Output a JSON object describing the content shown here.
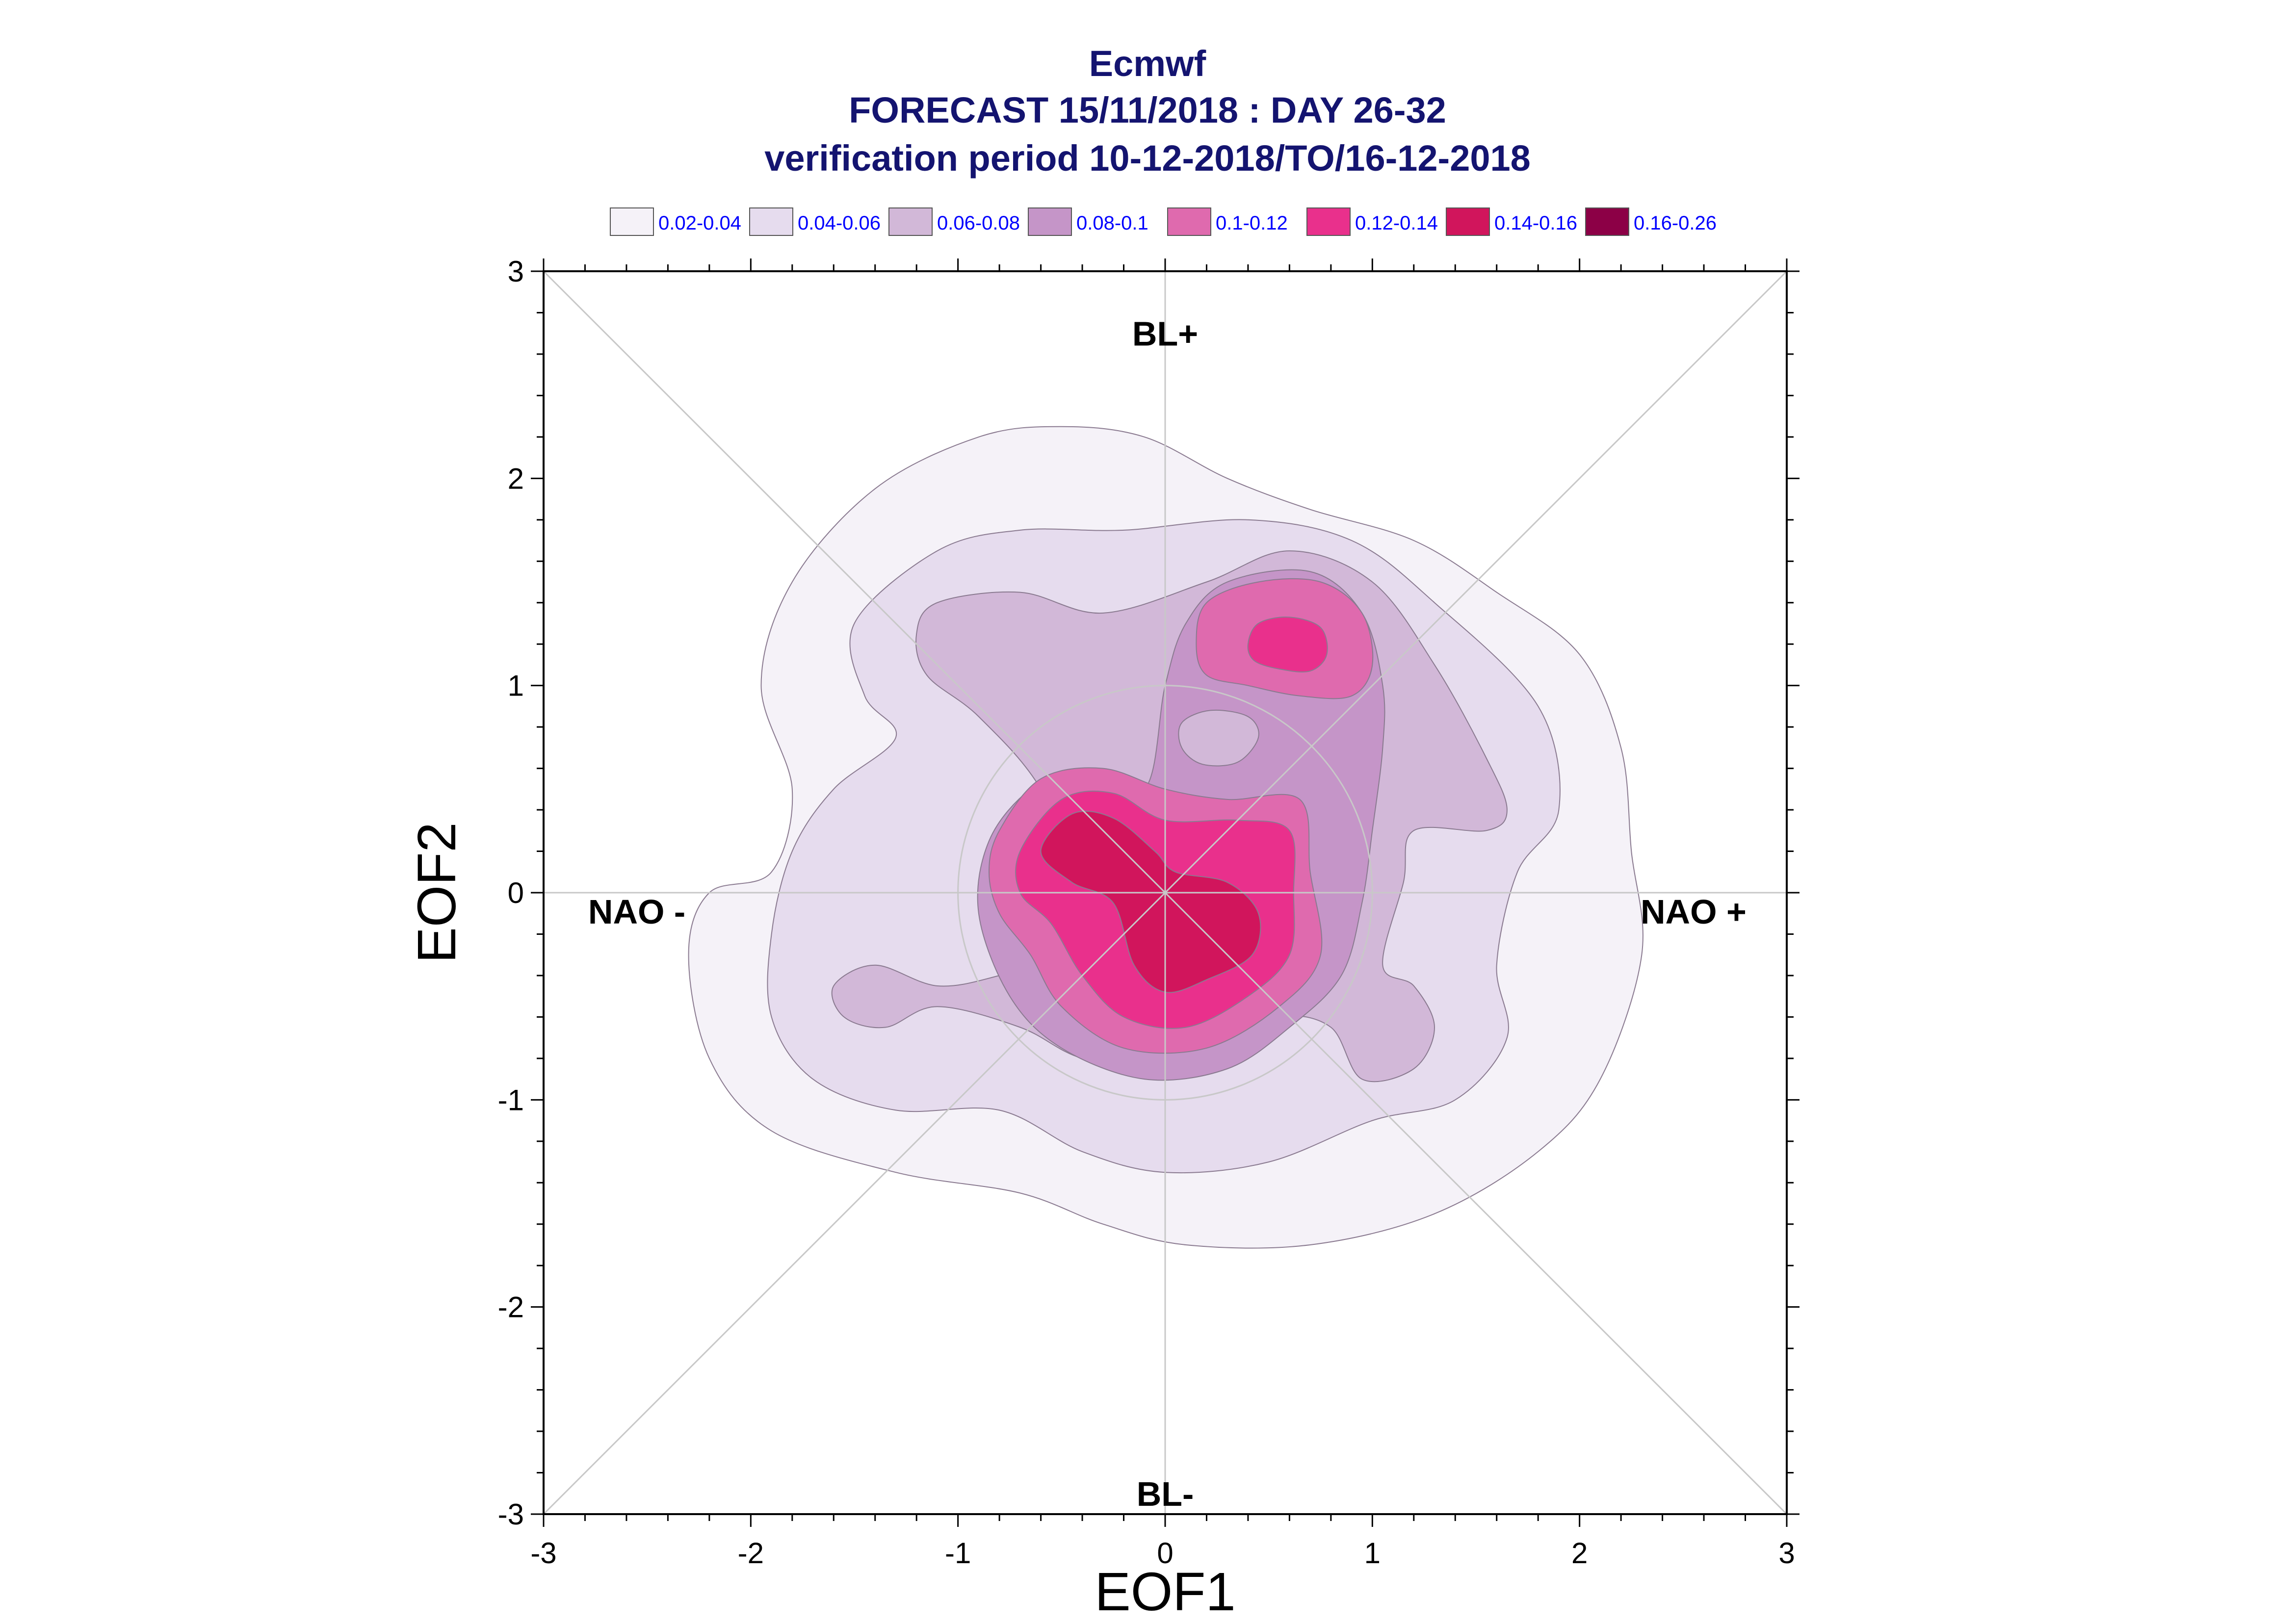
{
  "chart_data": {
    "type": "contour",
    "title_lines": [
      "Ecmwf",
      "FORECAST 15/11/2018 : DAY 26-32",
      "verification period 10-12-2018/TO/16-12-2018"
    ],
    "xlabel": "EOF1",
    "ylabel": "EOF2",
    "xlim": [
      -3,
      3
    ],
    "ylim": [
      -3,
      3
    ],
    "x_ticks": [
      -3,
      -2,
      -1,
      0,
      1,
      2,
      3
    ],
    "y_ticks": [
      -3,
      -2,
      -1,
      0,
      1,
      2,
      3
    ],
    "x_tick_labels": [
      "-3",
      "-2",
      "-1",
      "0",
      "1",
      "2",
      "3"
    ],
    "y_tick_labels": [
      "-3",
      "-2",
      "-1",
      "0",
      "1",
      "2",
      "3"
    ],
    "regime_labels": [
      {
        "text": "BL+",
        "x": 0,
        "y": 2.7
      },
      {
        "text": "BL-",
        "x": 0,
        "y": -2.9
      },
      {
        "text": "NAO -",
        "x": -2.55,
        "y": -0.09
      },
      {
        "text": "NAO +",
        "x": 2.55,
        "y": -0.09
      }
    ],
    "grid": "diagonals, zero-lines and unit circle",
    "unit_circle_radius": 1,
    "legend_placement": "top",
    "legend": [
      {
        "label": "0.02-0.04",
        "color": "#f5f2f8"
      },
      {
        "label": "0.04-0.06",
        "color": "#e6dcee"
      },
      {
        "label": "0.06-0.08",
        "color": "#d2b8d8"
      },
      {
        "label": "0.08-0.1",
        "color": "#c595c8"
      },
      {
        "label": "0.1-0.12",
        "color": "#df6aae"
      },
      {
        "label": "0.12-0.14",
        "color": "#e9308c"
      },
      {
        "label": "0.14-0.16",
        "color": "#d1155c"
      },
      {
        "label": "0.16-0.26",
        "color": "#8c0046"
      }
    ],
    "contours": [
      {
        "level": 0,
        "points": [
          [
            -1.8,
            0.5
          ],
          [
            -1.9,
            0.1
          ],
          [
            -2.2,
            0.0
          ],
          [
            -2.3,
            -0.3
          ],
          [
            -2.2,
            -0.8
          ],
          [
            -1.9,
            -1.15
          ],
          [
            -1.3,
            -1.35
          ],
          [
            -0.7,
            -1.45
          ],
          [
            -0.3,
            -1.6
          ],
          [
            0.1,
            -1.7
          ],
          [
            0.7,
            -1.7
          ],
          [
            1.3,
            -1.55
          ],
          [
            1.8,
            -1.25
          ],
          [
            2.1,
            -0.9
          ],
          [
            2.3,
            -0.3
          ],
          [
            2.25,
            0.2
          ],
          [
            2.2,
            0.7
          ],
          [
            2.0,
            1.15
          ],
          [
            1.6,
            1.45
          ],
          [
            1.2,
            1.7
          ],
          [
            0.7,
            1.85
          ],
          [
            0.3,
            2.0
          ],
          [
            -0.1,
            2.2
          ],
          [
            -0.5,
            2.25
          ],
          [
            -0.9,
            2.2
          ],
          [
            -1.4,
            1.95
          ],
          [
            -1.8,
            1.5
          ],
          [
            -1.95,
            1.0
          ]
        ]
      },
      {
        "level": 1,
        "points": [
          [
            -1.3,
            0.75
          ],
          [
            -1.6,
            0.5
          ],
          [
            -1.8,
            0.2
          ],
          [
            -1.9,
            -0.2
          ],
          [
            -1.9,
            -0.6
          ],
          [
            -1.7,
            -0.9
          ],
          [
            -1.3,
            -1.05
          ],
          [
            -0.8,
            -1.05
          ],
          [
            -0.4,
            -1.25
          ],
          [
            0.0,
            -1.35
          ],
          [
            0.5,
            -1.3
          ],
          [
            1.0,
            -1.1
          ],
          [
            1.4,
            -1.0
          ],
          [
            1.65,
            -0.7
          ],
          [
            1.6,
            -0.35
          ],
          [
            1.7,
            0.1
          ],
          [
            1.9,
            0.4
          ],
          [
            1.8,
            0.9
          ],
          [
            1.3,
            1.4
          ],
          [
            0.9,
            1.7
          ],
          [
            0.4,
            1.8
          ],
          [
            -0.2,
            1.75
          ],
          [
            -0.7,
            1.75
          ],
          [
            -1.1,
            1.65
          ],
          [
            -1.5,
            1.3
          ],
          [
            -1.45,
            0.95
          ]
        ]
      },
      {
        "level": 2,
        "points": [
          [
            -1.2,
            1.25
          ],
          [
            -1.1,
            1.4
          ],
          [
            -0.7,
            1.45
          ],
          [
            -0.3,
            1.35
          ],
          [
            0.2,
            1.5
          ],
          [
            0.6,
            1.65
          ],
          [
            1.0,
            1.5
          ],
          [
            1.3,
            1.1
          ],
          [
            1.55,
            0.65
          ],
          [
            1.65,
            0.4
          ],
          [
            1.55,
            0.3
          ],
          [
            1.2,
            0.3
          ],
          [
            1.15,
            0.05
          ],
          [
            1.05,
            -0.35
          ],
          [
            1.2,
            -0.45
          ],
          [
            1.3,
            -0.65
          ],
          [
            1.2,
            -0.85
          ],
          [
            0.95,
            -0.9
          ],
          [
            0.8,
            -0.65
          ],
          [
            0.55,
            -0.6
          ],
          [
            0.3,
            -0.75
          ],
          [
            0.0,
            -0.85
          ],
          [
            -0.4,
            -0.8
          ],
          [
            -0.7,
            -0.65
          ],
          [
            -1.1,
            -0.55
          ],
          [
            -1.35,
            -0.65
          ],
          [
            -1.55,
            -0.6
          ],
          [
            -1.6,
            -0.45
          ],
          [
            -1.4,
            -0.35
          ],
          [
            -1.1,
            -0.45
          ],
          [
            -0.8,
            -0.4
          ],
          [
            -0.5,
            -0.3
          ],
          [
            -0.4,
            0.0
          ],
          [
            -0.6,
            0.5
          ],
          [
            -0.9,
            0.85
          ],
          [
            -1.15,
            1.05
          ]
        ]
      },
      {
        "level": 3,
        "points": [
          [
            -0.1,
            0.5
          ],
          [
            0.0,
            1.0
          ],
          [
            0.1,
            1.3
          ],
          [
            0.3,
            1.5
          ],
          [
            0.7,
            1.55
          ],
          [
            0.95,
            1.35
          ],
          [
            1.05,
            1.0
          ],
          [
            1.05,
            0.7
          ],
          [
            1.0,
            0.3
          ],
          [
            0.95,
            -0.05
          ],
          [
            0.85,
            -0.4
          ],
          [
            0.6,
            -0.65
          ],
          [
            0.3,
            -0.85
          ],
          [
            -0.1,
            -0.9
          ],
          [
            -0.5,
            -0.75
          ],
          [
            -0.75,
            -0.5
          ],
          [
            -0.9,
            -0.1
          ],
          [
            -0.85,
            0.25
          ],
          [
            -0.65,
            0.5
          ],
          [
            -0.4,
            0.6
          ]
        ]
      },
      {
        "level": 4,
        "points": [
          [
            0.15,
            1.2
          ],
          [
            0.2,
            1.4
          ],
          [
            0.45,
            1.5
          ],
          [
            0.75,
            1.5
          ],
          [
            0.95,
            1.35
          ],
          [
            1.0,
            1.1
          ],
          [
            0.9,
            0.95
          ],
          [
            0.65,
            0.95
          ],
          [
            0.4,
            1.0
          ],
          [
            0.2,
            1.05
          ]
        ]
      },
      {
        "level": 4,
        "points": [
          [
            -0.8,
            0.3
          ],
          [
            -0.6,
            0.55
          ],
          [
            -0.3,
            0.6
          ],
          [
            0.0,
            0.5
          ],
          [
            0.3,
            0.45
          ],
          [
            0.65,
            0.45
          ],
          [
            0.7,
            0.1
          ],
          [
            0.75,
            -0.3
          ],
          [
            0.55,
            -0.55
          ],
          [
            0.2,
            -0.75
          ],
          [
            -0.2,
            -0.75
          ],
          [
            -0.5,
            -0.55
          ],
          [
            -0.65,
            -0.3
          ],
          [
            -0.8,
            -0.1
          ],
          [
            -0.85,
            0.1
          ]
        ]
      },
      {
        "level": 5,
        "points": [
          [
            0.4,
            1.2
          ],
          [
            0.45,
            1.3
          ],
          [
            0.6,
            1.33
          ],
          [
            0.75,
            1.28
          ],
          [
            0.78,
            1.15
          ],
          [
            0.7,
            1.07
          ],
          [
            0.55,
            1.08
          ],
          [
            0.43,
            1.12
          ]
        ]
      },
      {
        "level": 5,
        "points": [
          [
            -0.7,
            0.2
          ],
          [
            -0.5,
            0.45
          ],
          [
            -0.25,
            0.48
          ],
          [
            0.0,
            0.35
          ],
          [
            0.35,
            0.35
          ],
          [
            0.6,
            0.3
          ],
          [
            0.62,
            0.0
          ],
          [
            0.6,
            -0.3
          ],
          [
            0.4,
            -0.5
          ],
          [
            0.1,
            -0.65
          ],
          [
            -0.2,
            -0.6
          ],
          [
            -0.4,
            -0.4
          ],
          [
            -0.55,
            -0.15
          ],
          [
            -0.7,
            0.0
          ]
        ]
      },
      {
        "level": 6,
        "points": [
          [
            -0.6,
            0.2
          ],
          [
            -0.45,
            0.38
          ],
          [
            -0.25,
            0.36
          ],
          [
            -0.05,
            0.2
          ],
          [
            0.05,
            0.1
          ],
          [
            0.3,
            0.05
          ],
          [
            0.45,
            -0.1
          ],
          [
            0.42,
            -0.3
          ],
          [
            0.2,
            -0.42
          ],
          [
            0.0,
            -0.48
          ],
          [
            -0.15,
            -0.35
          ],
          [
            -0.25,
            -0.05
          ],
          [
            -0.45,
            0.05
          ]
        ]
      },
      {
        "level": 2,
        "points": [
          [
            0.08,
            0.82
          ],
          [
            0.22,
            0.88
          ],
          [
            0.4,
            0.85
          ],
          [
            0.45,
            0.75
          ],
          [
            0.35,
            0.63
          ],
          [
            0.18,
            0.62
          ],
          [
            0.08,
            0.7
          ]
        ]
      }
    ]
  }
}
